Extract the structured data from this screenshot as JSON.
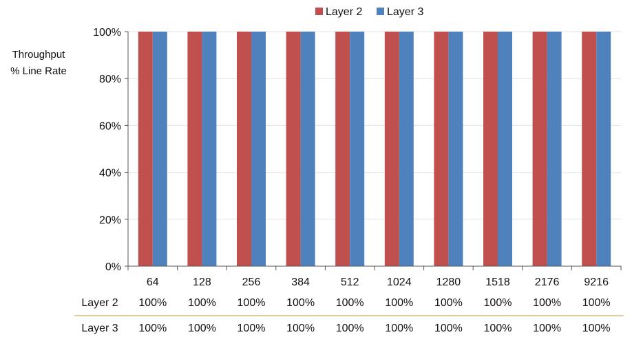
{
  "chart_data": {
    "type": "bar",
    "categories": [
      "64",
      "128",
      "256",
      "384",
      "512",
      "1024",
      "1280",
      "1518",
      "2176",
      "9216"
    ],
    "series": [
      {
        "name": "Layer 2",
        "color": "#c0504d",
        "values": [
          100,
          100,
          100,
          100,
          100,
          100,
          100,
          100,
          100,
          100
        ]
      },
      {
        "name": "Layer 3",
        "color": "#4f81bd",
        "values": [
          100,
          100,
          100,
          100,
          100,
          100,
          100,
          100,
          100,
          100
        ]
      }
    ],
    "ylabel_lines": [
      "Throughput",
      "% Line Rate"
    ],
    "ylim": [
      0,
      100
    ],
    "yticks": [
      0,
      20,
      40,
      60,
      80,
      100
    ],
    "ytick_labels": [
      "0%",
      "20%",
      "40%",
      "60%",
      "80%",
      "100%"
    ],
    "grid": true,
    "legend_position": "top-center",
    "table": {
      "rows": [
        {
          "label": "Layer 2",
          "values": [
            "100%",
            "100%",
            "100%",
            "100%",
            "100%",
            "100%",
            "100%",
            "100%",
            "100%",
            "100%"
          ]
        },
        {
          "label": "Layer 3",
          "values": [
            "100%",
            "100%",
            "100%",
            "100%",
            "100%",
            "100%",
            "100%",
            "100%",
            "100%",
            "100%"
          ]
        }
      ],
      "separator_color": "#c9b26b"
    }
  }
}
